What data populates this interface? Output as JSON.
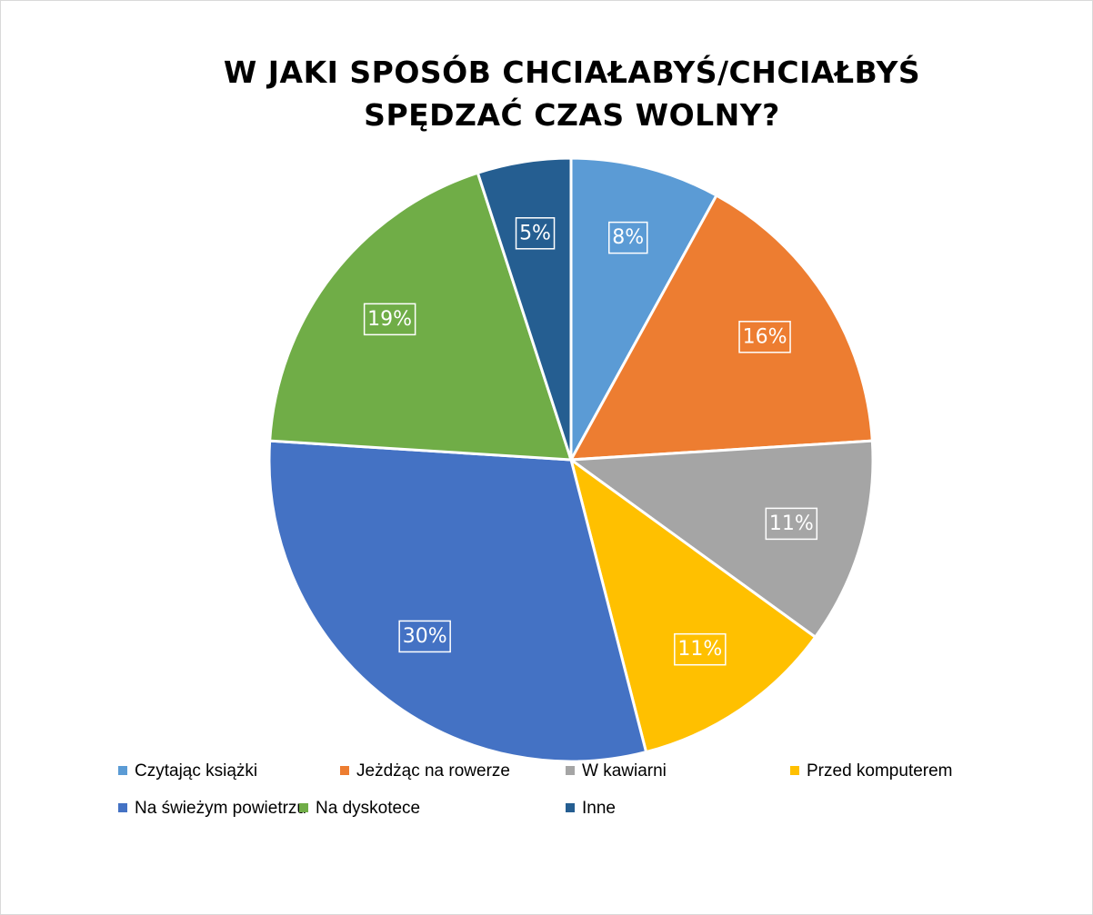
{
  "chart_data": {
    "type": "pie",
    "title": "W JAKI SPOSÓB CHCIAŁABYŚ/CHCIAŁBYŚ SPĘDZAĆ CZAS WOLNY?",
    "title_lines": [
      "W JAKI SPOSÓB CHCIAŁABYŚ/CHCIAŁBYŚ",
      "SPĘDZAĆ CZAS WOLNY?"
    ],
    "legend_position": "bottom",
    "slices": [
      {
        "label": "Czytając książki",
        "value": 8,
        "data_label": "8%",
        "color": "#5B9BD5"
      },
      {
        "label": "Jeżdżąc na rowerze",
        "value": 16,
        "data_label": "16%",
        "color": "#ED7D31"
      },
      {
        "label": "W kawiarni",
        "value": 11,
        "data_label": "11%",
        "color": "#A5A5A5"
      },
      {
        "label": "Przed komputerem",
        "value": 11,
        "data_label": "11%",
        "color": "#FFC000"
      },
      {
        "label": "Na świeżym powietrzu",
        "value": 30,
        "data_label": "30%",
        "color": "#4472C4"
      },
      {
        "label": "Na dyskotece",
        "value": 19,
        "data_label": "19%",
        "color": "#70AD47"
      },
      {
        "label": "Inne",
        "value": 5,
        "data_label": "5%",
        "color": "#255E91"
      }
    ]
  }
}
